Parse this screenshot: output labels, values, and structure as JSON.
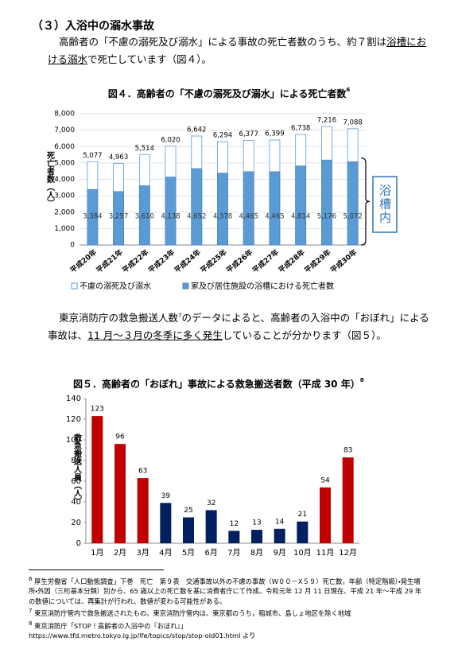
{
  "heading": "（３）入浴中の溺水事故",
  "paragraph1": [
    "高齢者の「不慮の溺死及び溺水」による事故の死亡者数のうち、約７割は",
    "浴槽における溺水",
    "で死亡しています（図４）。"
  ],
  "paragraph2": [
    "東京消防庁の救急搬送人数",
    "7",
    "のデータによると、高齢者の入浴中の「おぼれ」による事故は、",
    "11 月～３月の冬季に多く発生",
    "していることが分かります（図５）。"
  ],
  "chart_data": [
    {
      "type": "bar",
      "mode": "overlap",
      "title": "図４．高齢者の「不慮の溺死及び溺水」による死亡者数",
      "title_note": "6",
      "ylabel": "死亡者数（人）",
      "annotation": "浴槽内",
      "annotation_color": "#2e75b6",
      "categories": [
        "平成20年",
        "平成21年",
        "平成22年",
        "平成23年",
        "平成24年",
        "平成25年",
        "平成26年",
        "平成27年",
        "平成28年",
        "平成29年",
        "平成30年"
      ],
      "series": [
        {
          "name": "不慮の溺死及び溺水",
          "color": "#ffffff",
          "edgecolor": "#5b9bd5",
          "values": [
            5077,
            4963,
            5514,
            6020,
            6642,
            6294,
            6377,
            6399,
            6738,
            7216,
            7088
          ],
          "value_labels": [
            "5,077",
            "4,963",
            "5,514",
            "6,020",
            "6,642",
            "6,294",
            "6,377",
            "6,399",
            "6,738",
            "7,216",
            "7,088"
          ]
        },
        {
          "name": "家及び居住施設の浴槽における死亡者数",
          "color": "#5b9bd5",
          "edgecolor": "#4a86c2",
          "values": [
            3384,
            3257,
            3610,
            4138,
            4652,
            4378,
            4465,
            4465,
            4814,
            5176,
            5072
          ],
          "value_labels": [
            "3,384",
            "3,257",
            "3,610",
            "4,138",
            "4,652",
            "4,378",
            "4,465",
            "4,465",
            "4,814",
            "5,176",
            "5,072"
          ]
        }
      ],
      "ylim": [
        0,
        8000
      ],
      "yticks": [
        0,
        {
          "value": 1000,
          "label": "1,000"
        },
        {
          "value": 2000,
          "label": "2,000"
        },
        {
          "value": 3000,
          "label": "3,000"
        },
        {
          "value": 4000,
          "label": "4,000"
        },
        {
          "value": 5000,
          "label": "5,000"
        },
        {
          "value": 6000,
          "label": "6,000"
        },
        {
          "value": 7000,
          "label": "7,000"
        },
        {
          "value": 8000,
          "label": "8,000"
        }
      ],
      "grid": true,
      "legend": "bottom"
    },
    {
      "type": "bar",
      "title": "図５．高齢者の「おぼれ」事故による救急搬送者数（平成 30 年）",
      "title_note": "8",
      "ylabel": "救急搬送人員（人）",
      "categories": [
        "1月",
        "2月",
        "3月",
        "4月",
        "5月",
        "6月",
        "7月",
        "8月",
        "9月",
        "10月",
        "11月",
        "12月"
      ],
      "values": [
        123,
        96,
        63,
        39,
        25,
        32,
        12,
        13,
        14,
        21,
        54,
        83
      ],
      "colors": [
        "#c00000",
        "#c00000",
        "#c00000",
        "#002060",
        "#002060",
        "#002060",
        "#002060",
        "#002060",
        "#002060",
        "#002060",
        "#c00000",
        "#c00000"
      ],
      "ylim": [
        0,
        140
      ],
      "yticks": [
        0,
        20,
        40,
        60,
        80,
        100,
        120,
        140
      ],
      "grid": false
    }
  ],
  "footnotes": [
    {
      "mark": "6",
      "text": "厚生労働省「人口動態調査」下巻　死亡　第９表　交通事故以外の不慮の事故（W００－X５９）死亡数，年齢（特定階級）・発生場所・外因（三桁基本分類）別から、65 歳以上の死亡数を基に消費者庁にて作成。令和元年 12 月 11 日現在、平成 21 年～平成 29 年の数値については、再集計が行われ、数値が変わる可能性がある。"
    },
    {
      "mark": "7",
      "text": "東京消防庁管内で救急搬送されたもの。東京消防庁管内は、東京都のうち，稲城市、島しょ地区を除く地域"
    },
    {
      "mark": "8",
      "text": "東京消防庁「STOP！高齢者の入浴中の『おぼれ』」"
    }
  ],
  "footnote_url": "https://www.tfd.metro.tokyo.lg.jp/lfe/topics/stop/stop-old01.html より"
}
